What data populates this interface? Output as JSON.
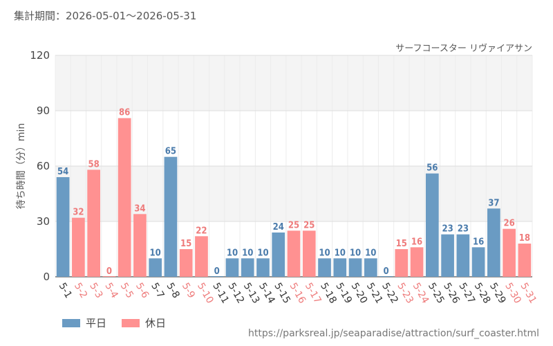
{
  "header": {
    "period": "集計期間：2026-05-01～2026-05-31"
  },
  "legend": {
    "weekday": "平日",
    "holiday": "休日"
  },
  "colors": {
    "weekday": "#6a9bc3",
    "holiday": "#ff9191",
    "weekday_label": "#4a7bab",
    "holiday_label": "#ee7b7b",
    "plot_band": "#f4f4f4"
  },
  "source": "https://parksreal.jp/seaparadise/attraction/surf_coaster.html",
  "chart_data": {
    "type": "bar",
    "title": "サーフコースター リヴァイアサン",
    "ylabel": "待ち時間（分）min",
    "ylim": [
      0,
      120
    ],
    "yticks": [
      0,
      30,
      60,
      90,
      120
    ],
    "categories": [
      "5-1",
      "5-2",
      "5-3",
      "5-4",
      "5-5",
      "5-6",
      "5-7",
      "5-8",
      "5-9",
      "5-10",
      "5-11",
      "5-12",
      "5-13",
      "5-14",
      "5-15",
      "5-16",
      "5-17",
      "5-18",
      "5-19",
      "5-20",
      "5-21",
      "5-22",
      "5-23",
      "5-24",
      "5-25",
      "5-26",
      "5-27",
      "5-28",
      "5-29",
      "5-30",
      "5-31"
    ],
    "values": [
      54,
      32,
      58,
      0,
      86,
      34,
      10,
      65,
      15,
      22,
      0,
      10,
      10,
      10,
      24,
      25,
      25,
      10,
      10,
      10,
      10,
      0,
      15,
      16,
      56,
      23,
      23,
      16,
      37,
      26,
      18
    ],
    "day_type": [
      "weekday",
      "holiday",
      "holiday",
      "holiday",
      "holiday",
      "holiday",
      "weekday",
      "weekday",
      "holiday",
      "holiday",
      "weekday",
      "weekday",
      "weekday",
      "weekday",
      "weekday",
      "holiday",
      "holiday",
      "weekday",
      "weekday",
      "weekday",
      "weekday",
      "weekday",
      "holiday",
      "holiday",
      "weekday",
      "weekday",
      "weekday",
      "weekday",
      "weekday",
      "holiday",
      "holiday"
    ]
  }
}
